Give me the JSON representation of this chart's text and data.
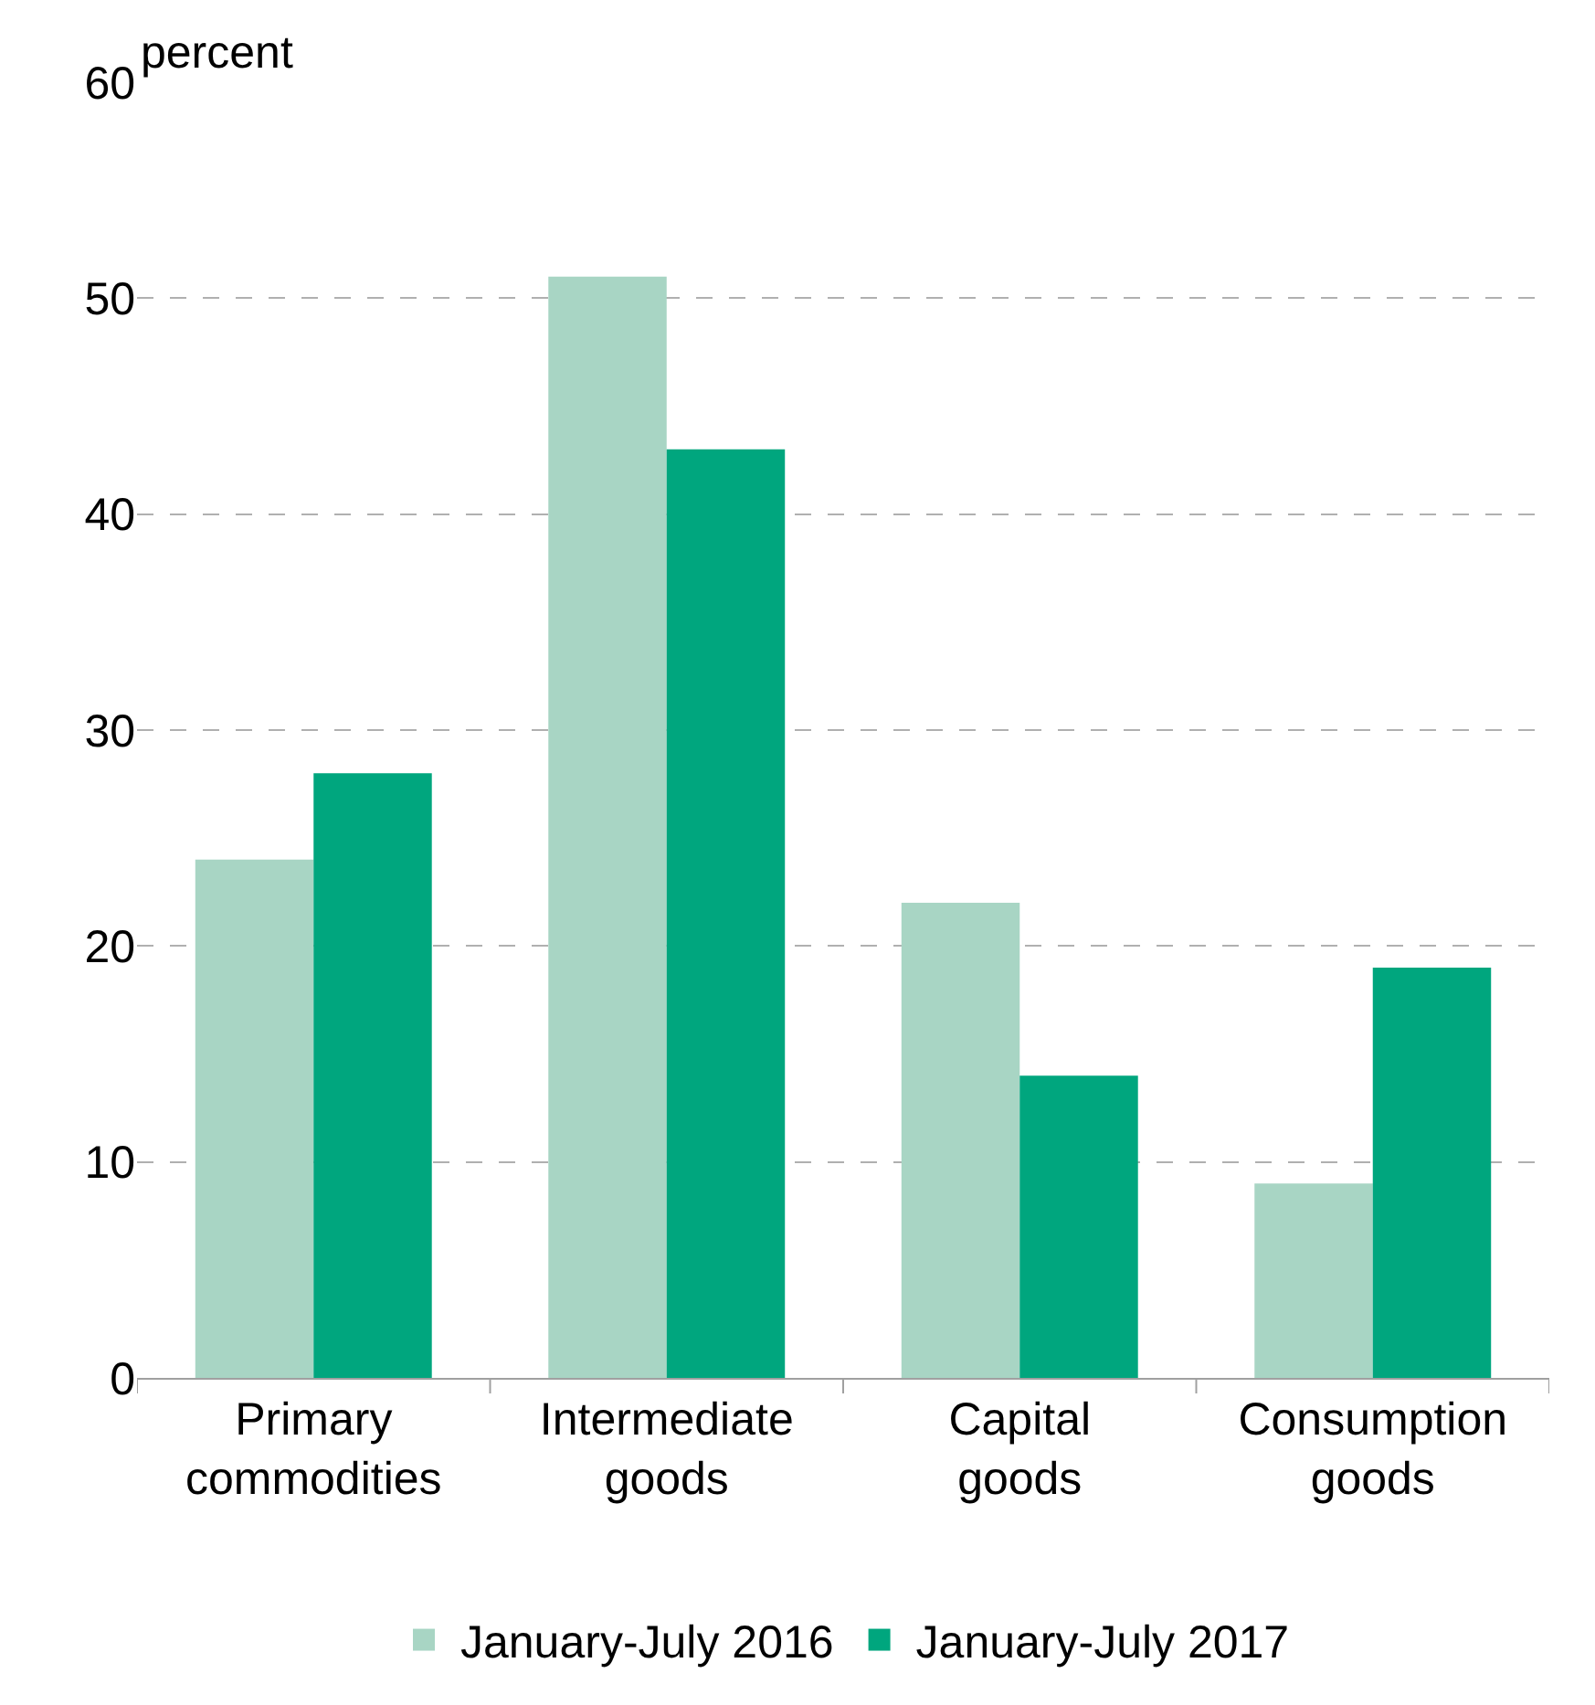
{
  "chart_data": {
    "type": "bar",
    "ylabel": "percent",
    "categories": [
      "Primary commodities",
      "Intermediate goods",
      "Capital goods",
      "Consumption goods"
    ],
    "series": [
      {
        "name": "January-July 2016",
        "color": "#a8d5c4",
        "values": [
          24,
          51,
          22,
          9
        ]
      },
      {
        "name": "January-July 2017",
        "color": "#00a67e",
        "values": [
          28,
          43,
          14,
          19
        ]
      }
    ],
    "ylim": [
      0,
      60
    ],
    "yticks": [
      0,
      10,
      20,
      30,
      40,
      50,
      60
    ],
    "grid": "y",
    "legend": "bottom"
  }
}
